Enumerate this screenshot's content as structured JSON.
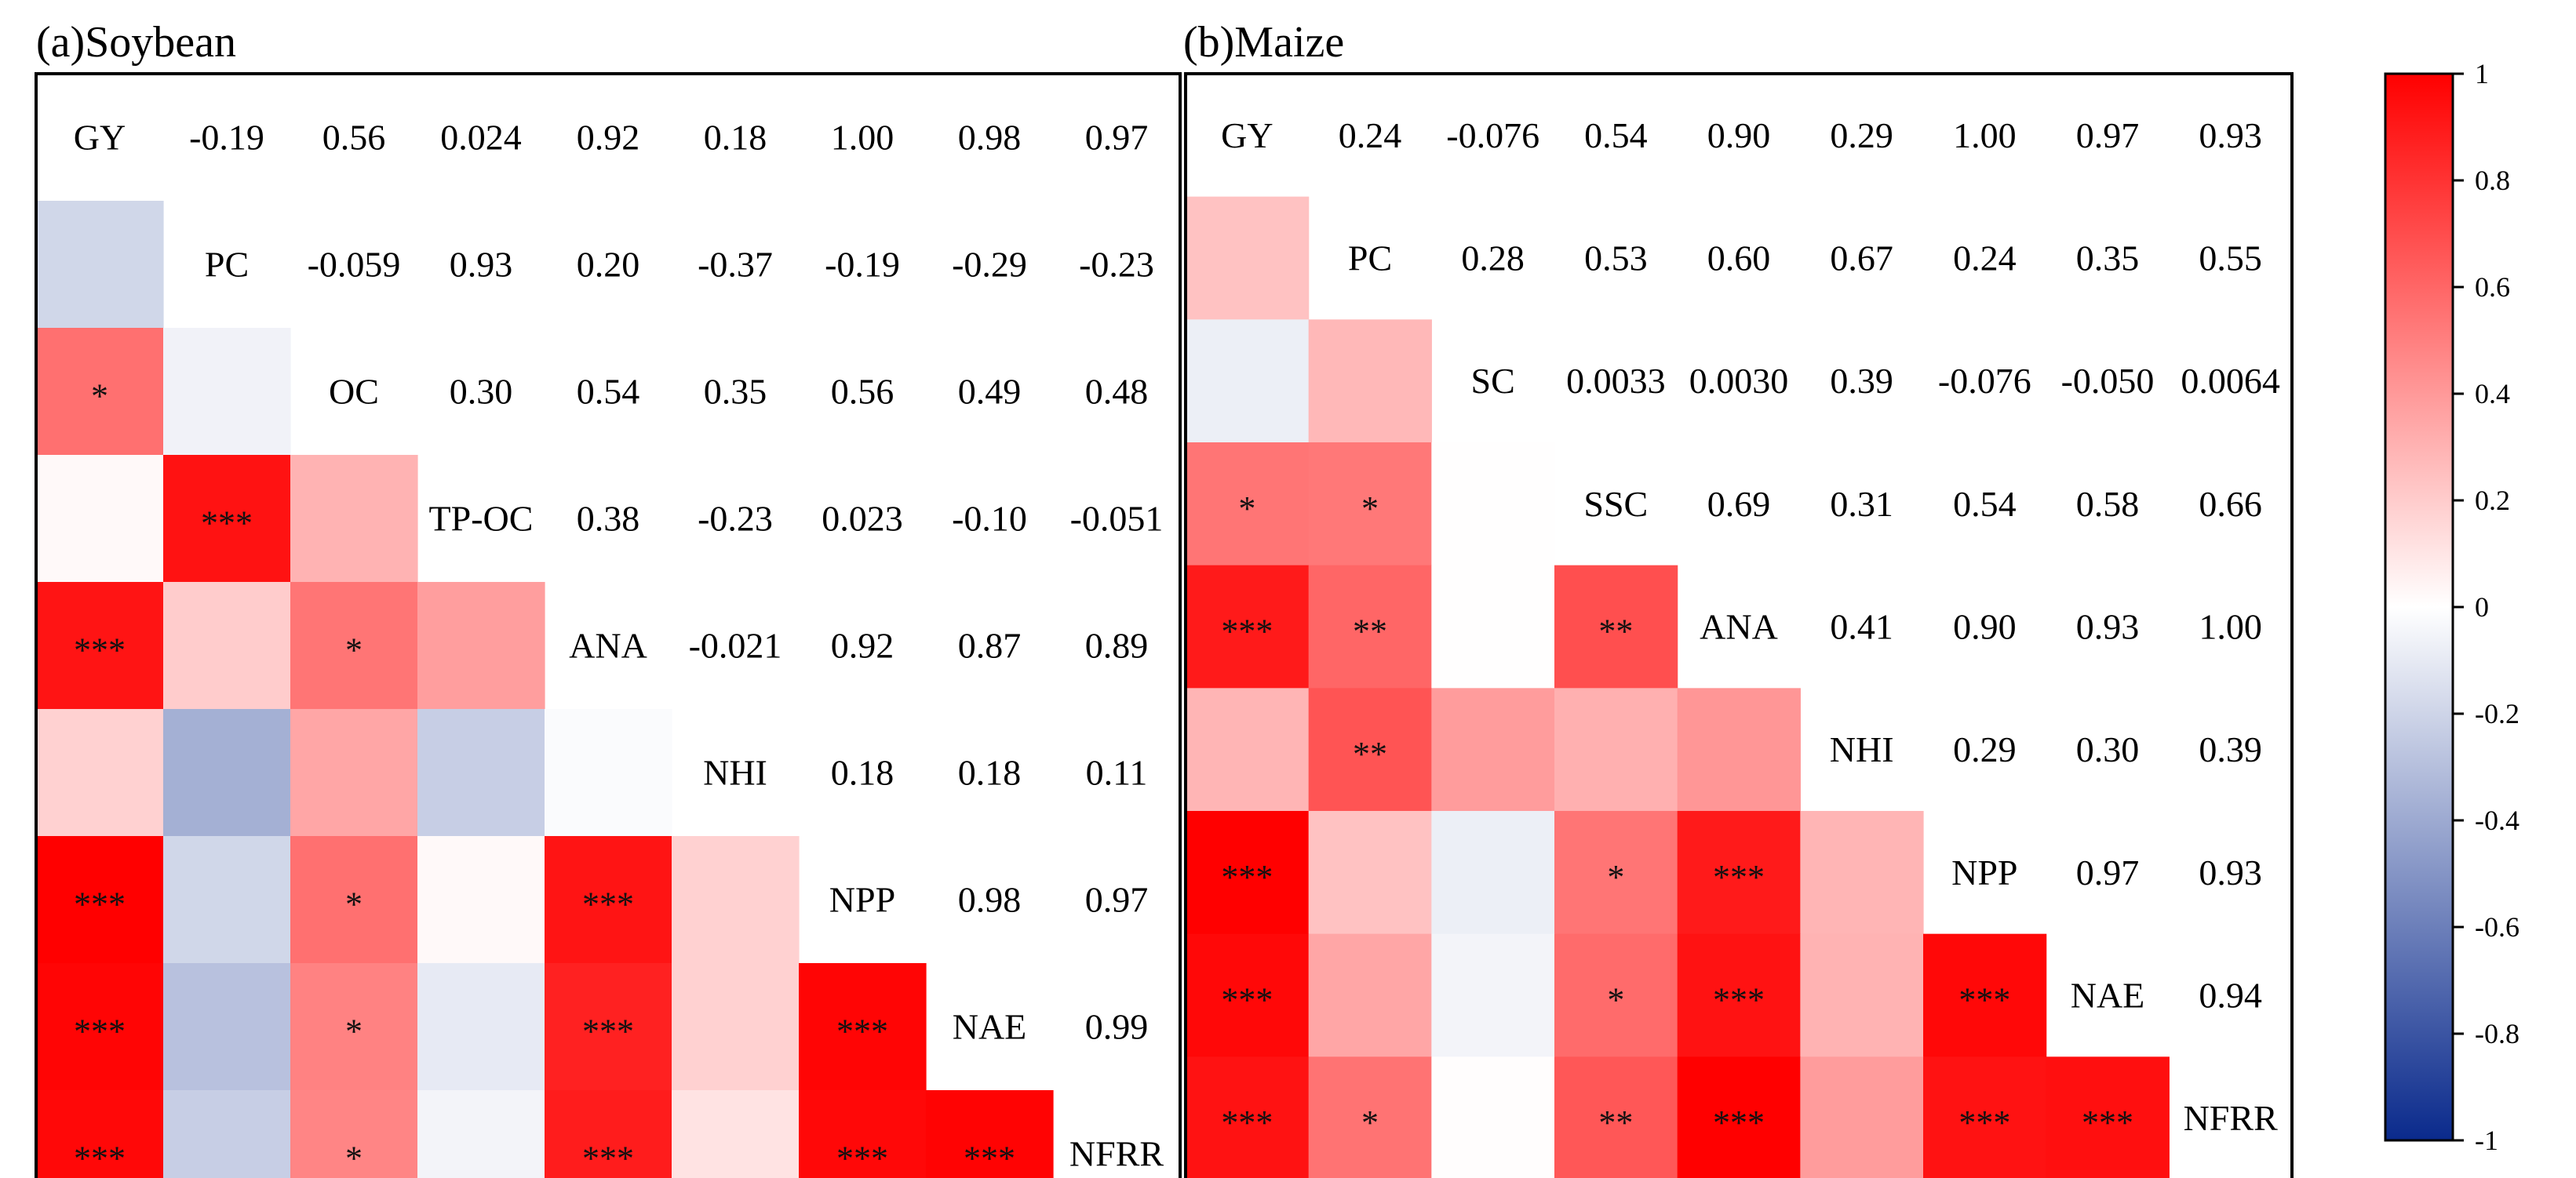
{
  "chart_data": [
    {
      "type": "heatmap",
      "title": "(a)Soybean",
      "variables": [
        "GY",
        "PC",
        "OC",
        "TP-OC",
        "ANA",
        "NHI",
        "NPP",
        "NAE",
        "NFRR"
      ],
      "correlations": [
        [
          1.0,
          -0.19,
          0.56,
          0.024,
          0.92,
          0.18,
          1.0,
          0.98,
          0.97
        ],
        [
          -0.19,
          1.0,
          -0.059,
          0.93,
          0.2,
          -0.37,
          -0.19,
          -0.29,
          -0.23
        ],
        [
          0.56,
          -0.059,
          1.0,
          0.3,
          0.54,
          0.35,
          0.56,
          0.49,
          0.48
        ],
        [
          0.024,
          0.93,
          0.3,
          1.0,
          0.38,
          -0.23,
          0.023,
          -0.1,
          -0.051
        ],
        [
          0.92,
          0.2,
          0.54,
          0.38,
          1.0,
          -0.021,
          0.92,
          0.87,
          0.89
        ],
        [
          0.18,
          -0.37,
          0.35,
          -0.23,
          -0.021,
          1.0,
          0.18,
          0.18,
          0.11
        ],
        [
          1.0,
          -0.19,
          0.56,
          0.023,
          0.92,
          0.18,
          1.0,
          0.98,
          0.97
        ],
        [
          0.98,
          -0.29,
          0.49,
          -0.1,
          0.87,
          0.18,
          0.98,
          1.0,
          0.99
        ],
        [
          0.97,
          -0.23,
          0.48,
          -0.051,
          0.89,
          0.11,
          0.97,
          0.99,
          1.0
        ]
      ],
      "upper_labels": [
        [
          "",
          "-0.19",
          "0.56",
          "0.024",
          "0.92",
          "0.18",
          "1.00",
          "0.98",
          "0.97"
        ],
        [
          "",
          "",
          "-0.059",
          "0.93",
          "0.20",
          "-0.37",
          "-0.19",
          "-0.29",
          "-0.23"
        ],
        [
          "",
          "",
          "",
          "0.30",
          "0.54",
          "0.35",
          "0.56",
          "0.49",
          "0.48"
        ],
        [
          "",
          "",
          "",
          "",
          "0.38",
          "-0.23",
          "0.023",
          "-0.10",
          "-0.051"
        ],
        [
          "",
          "",
          "",
          "",
          "",
          "-0.021",
          "0.92",
          "0.87",
          "0.89"
        ],
        [
          "",
          "",
          "",
          "",
          "",
          "",
          "0.18",
          "0.18",
          "0.11"
        ],
        [
          "",
          "",
          "",
          "",
          "",
          "",
          "",
          "0.98",
          "0.97"
        ],
        [
          "",
          "",
          "",
          "",
          "",
          "",
          "",
          "",
          "0.99"
        ],
        [
          "",
          "",
          "",
          "",
          "",
          "",
          "",
          "",
          ""
        ]
      ],
      "significance": [
        [
          "",
          "",
          "",
          "",
          "",
          "",
          "",
          "",
          ""
        ],
        [
          "",
          "",
          "",
          "",
          "",
          "",
          "",
          "",
          ""
        ],
        [
          "*",
          "",
          "",
          "",
          "",
          "",
          "",
          "",
          ""
        ],
        [
          "",
          "***",
          "",
          "",
          "",
          "",
          "",
          "",
          ""
        ],
        [
          "***",
          "",
          "*",
          "",
          "",
          "",
          "",
          "",
          ""
        ],
        [
          "",
          "",
          "",
          "",
          "",
          "",
          "",
          "",
          ""
        ],
        [
          "***",
          "",
          "*",
          "",
          "***",
          "",
          "",
          "",
          ""
        ],
        [
          "***",
          "",
          "*",
          "",
          "***",
          "",
          "***",
          "",
          ""
        ],
        [
          "***",
          "",
          "*",
          "",
          "***",
          "",
          "***",
          "***",
          ""
        ]
      ]
    },
    {
      "type": "heatmap",
      "title": "(b)Maize",
      "variables": [
        "GY",
        "PC",
        "SC",
        "SSC",
        "ANA",
        "NHI",
        "NPP",
        "NAE",
        "NFRR"
      ],
      "correlations": [
        [
          1.0,
          0.24,
          -0.076,
          0.54,
          0.9,
          0.29,
          1.0,
          0.97,
          0.93
        ],
        [
          0.24,
          1.0,
          0.28,
          0.53,
          0.6,
          0.67,
          0.24,
          0.35,
          0.55
        ],
        [
          -0.076,
          0.28,
          1.0,
          0.0033,
          0.003,
          0.39,
          -0.076,
          -0.05,
          0.0064
        ],
        [
          0.54,
          0.53,
          0.0033,
          1.0,
          0.69,
          0.31,
          0.54,
          0.58,
          0.66
        ],
        [
          0.9,
          0.6,
          0.003,
          0.69,
          1.0,
          0.41,
          0.9,
          0.93,
          1.0
        ],
        [
          0.29,
          0.67,
          0.39,
          0.31,
          0.41,
          1.0,
          0.29,
          0.3,
          0.39
        ],
        [
          1.0,
          0.24,
          -0.076,
          0.54,
          0.9,
          0.29,
          1.0,
          0.97,
          0.93
        ],
        [
          0.97,
          0.35,
          -0.05,
          0.58,
          0.93,
          0.3,
          0.97,
          1.0,
          0.94
        ],
        [
          0.93,
          0.55,
          0.0064,
          0.66,
          1.0,
          0.39,
          0.93,
          0.94,
          1.0
        ]
      ],
      "upper_labels": [
        [
          "",
          "0.24",
          "-0.076",
          "0.54",
          "0.90",
          "0.29",
          "1.00",
          "0.97",
          "0.93"
        ],
        [
          "",
          "",
          "0.28",
          "0.53",
          "0.60",
          "0.67",
          "0.24",
          "0.35",
          "0.55"
        ],
        [
          "",
          "",
          "",
          "0.0033",
          "0.0030",
          "0.39",
          "-0.076",
          "-0.050",
          "0.0064"
        ],
        [
          "",
          "",
          "",
          "",
          "0.69",
          "0.31",
          "0.54",
          "0.58",
          "0.66"
        ],
        [
          "",
          "",
          "",
          "",
          "",
          "0.41",
          "0.90",
          "0.93",
          "1.00"
        ],
        [
          "",
          "",
          "",
          "",
          "",
          "",
          "0.29",
          "0.30",
          "0.39"
        ],
        [
          "",
          "",
          "",
          "",
          "",
          "",
          "",
          "0.97",
          "0.93"
        ],
        [
          "",
          "",
          "",
          "",
          "",
          "",
          "",
          "",
          "0.94"
        ],
        [
          "",
          "",
          "",
          "",
          "",
          "",
          "",
          "",
          ""
        ]
      ],
      "significance": [
        [
          "",
          "",
          "",
          "",
          "",
          "",
          "",
          "",
          ""
        ],
        [
          "",
          "",
          "",
          "",
          "",
          "",
          "",
          "",
          ""
        ],
        [
          "",
          "",
          "",
          "",
          "",
          "",
          "",
          "",
          ""
        ],
        [
          "*",
          "*",
          "",
          "",
          "",
          "",
          "",
          "",
          ""
        ],
        [
          "***",
          "**",
          "",
          "**",
          "",
          "",
          "",
          "",
          ""
        ],
        [
          "",
          "**",
          "",
          "",
          "",
          "",
          "",
          "",
          ""
        ],
        [
          "***",
          "",
          "",
          "*",
          "***",
          "",
          "",
          "",
          ""
        ],
        [
          "***",
          "",
          "",
          "*",
          "***",
          "",
          "***",
          "",
          ""
        ],
        [
          "***",
          "*",
          "",
          "**",
          "***",
          "",
          "***",
          "***",
          ""
        ]
      ]
    }
  ],
  "colorbar": {
    "min": -1,
    "max": 1,
    "ticks": [
      "1",
      "0.8",
      "0.6",
      "0.4",
      "0.2",
      "0",
      "-0.2",
      "-0.4",
      "-0.6",
      "-0.8",
      "-1"
    ],
    "colors": {
      "negative": "#0a2a8c",
      "zero": "#ffffff",
      "positive": "#ff0000"
    }
  }
}
